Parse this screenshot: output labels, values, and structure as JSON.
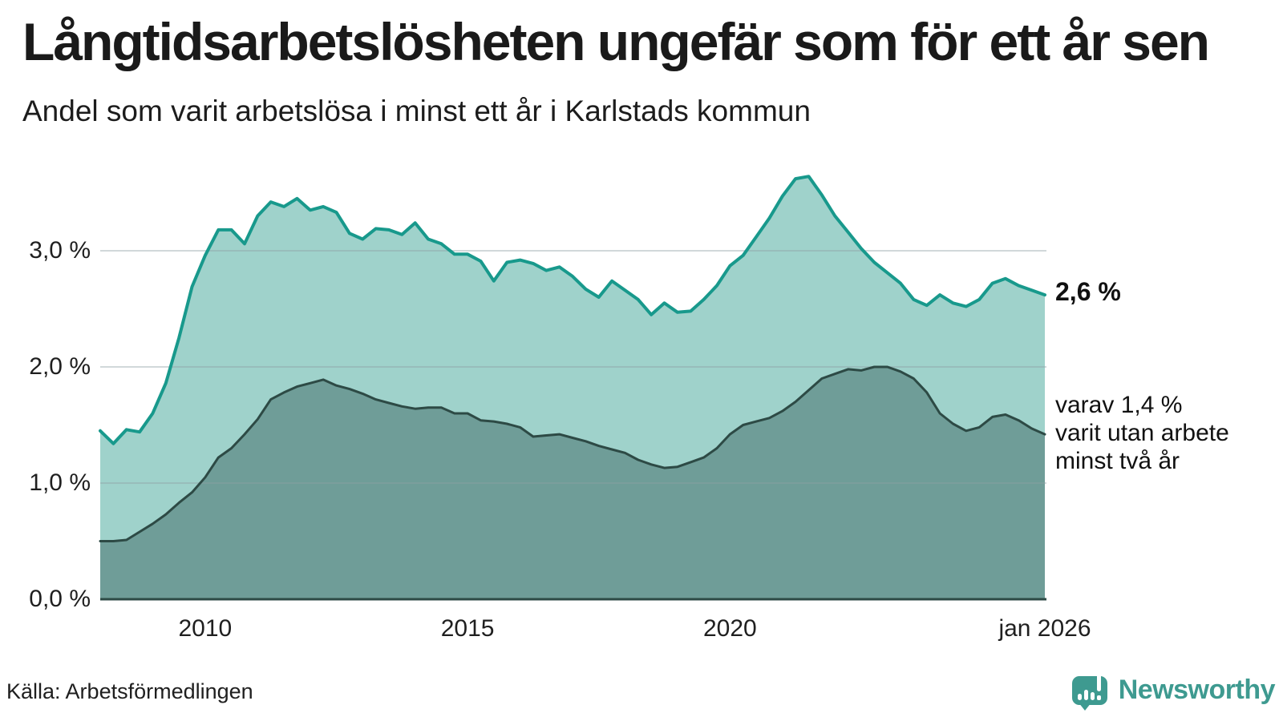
{
  "header": {
    "title": "Långtidsarbetslösheten ungefär som för ett år sen",
    "subtitle": "Andel som varit arbetslösa i minst ett år i Karlstads kommun"
  },
  "annotations": {
    "latest_total": "2,6 %",
    "latest_two_years_lines": [
      "varav 1,4 %",
      "varit utan arbete",
      "minst två år"
    ]
  },
  "footer": {
    "source": "Källa: Arbetsförmedlingen",
    "logo_text": "Newsworthy",
    "logo_color": "#3e9a90"
  },
  "chart_data": {
    "type": "area",
    "title": "Långtidsarbetslösheten ungefär som för ett år sen",
    "subtitle": "Andel som varit arbetslösa i minst ett år i Karlstads kommun",
    "x_unit": "year (monthly curve, quarterly sampled values)",
    "x_range": [
      2008,
      2026
    ],
    "ylim": [
      0,
      3.75
    ],
    "grid": true,
    "grid_color": "#8fa0a4",
    "axis_color": "#2d4a45",
    "y_ticks": [
      {
        "value": 0,
        "label": "0,0 %"
      },
      {
        "value": 1,
        "label": "1,0 %"
      },
      {
        "value": 2,
        "label": "2,0 %"
      },
      {
        "value": 3,
        "label": "3,0 %"
      }
    ],
    "x_ticks": [
      {
        "value": 2010,
        "label": "2010"
      },
      {
        "value": 2015,
        "label": "2015"
      },
      {
        "value": 2020,
        "label": "2020"
      },
      {
        "value": 2026,
        "label": "jan 2026"
      }
    ],
    "series": [
      {
        "id": "minst-ett-ar",
        "name": "Arbetslösa minst ett år (totalt)",
        "line_color": "#18998c",
        "fill_color": "#9fd2cb",
        "line_width": 4,
        "end_label": "2,6 %",
        "start": 2008,
        "step": 0.25,
        "values": [
          1.45,
          1.34,
          1.46,
          1.44,
          1.6,
          1.86,
          2.25,
          2.69,
          2.96,
          3.18,
          3.18,
          3.06,
          3.3,
          3.42,
          3.38,
          3.45,
          3.35,
          3.38,
          3.33,
          3.15,
          3.1,
          3.19,
          3.18,
          3.14,
          3.24,
          3.1,
          3.06,
          2.97,
          2.97,
          2.91,
          2.74,
          2.9,
          2.92,
          2.89,
          2.83,
          2.86,
          2.78,
          2.67,
          2.6,
          2.74,
          2.66,
          2.58,
          2.45,
          2.55,
          2.47,
          2.48,
          2.58,
          2.7,
          2.87,
          2.96,
          3.12,
          3.28,
          3.47,
          3.62,
          3.64,
          3.48,
          3.3,
          3.16,
          3.02,
          2.9,
          2.81,
          2.72,
          2.58,
          2.53,
          2.62,
          2.55,
          2.52,
          2.58,
          2.72,
          2.76,
          2.7,
          2.66,
          2.62
        ]
      },
      {
        "id": "minst-tva-ar",
        "name": "varav arbetslösa minst två år",
        "line_color": "#2d4a45",
        "fill_color": "#6f9d98",
        "line_width": 3,
        "end_label": "1,4 %",
        "start": 2008,
        "step": 0.25,
        "values": [
          0.5,
          0.5,
          0.51,
          0.58,
          0.65,
          0.73,
          0.83,
          0.92,
          1.05,
          1.22,
          1.3,
          1.42,
          1.55,
          1.72,
          1.78,
          1.83,
          1.86,
          1.89,
          1.84,
          1.81,
          1.77,
          1.72,
          1.69,
          1.66,
          1.64,
          1.65,
          1.65,
          1.6,
          1.6,
          1.54,
          1.53,
          1.51,
          1.48,
          1.4,
          1.41,
          1.42,
          1.39,
          1.36,
          1.32,
          1.29,
          1.26,
          1.2,
          1.16,
          1.13,
          1.14,
          1.18,
          1.22,
          1.3,
          1.42,
          1.5,
          1.53,
          1.56,
          1.62,
          1.7,
          1.8,
          1.9,
          1.94,
          1.98,
          1.97,
          2.0,
          2.0,
          1.96,
          1.9,
          1.78,
          1.6,
          1.51,
          1.45,
          1.48,
          1.57,
          1.59,
          1.54,
          1.47,
          1.42
        ]
      }
    ]
  }
}
